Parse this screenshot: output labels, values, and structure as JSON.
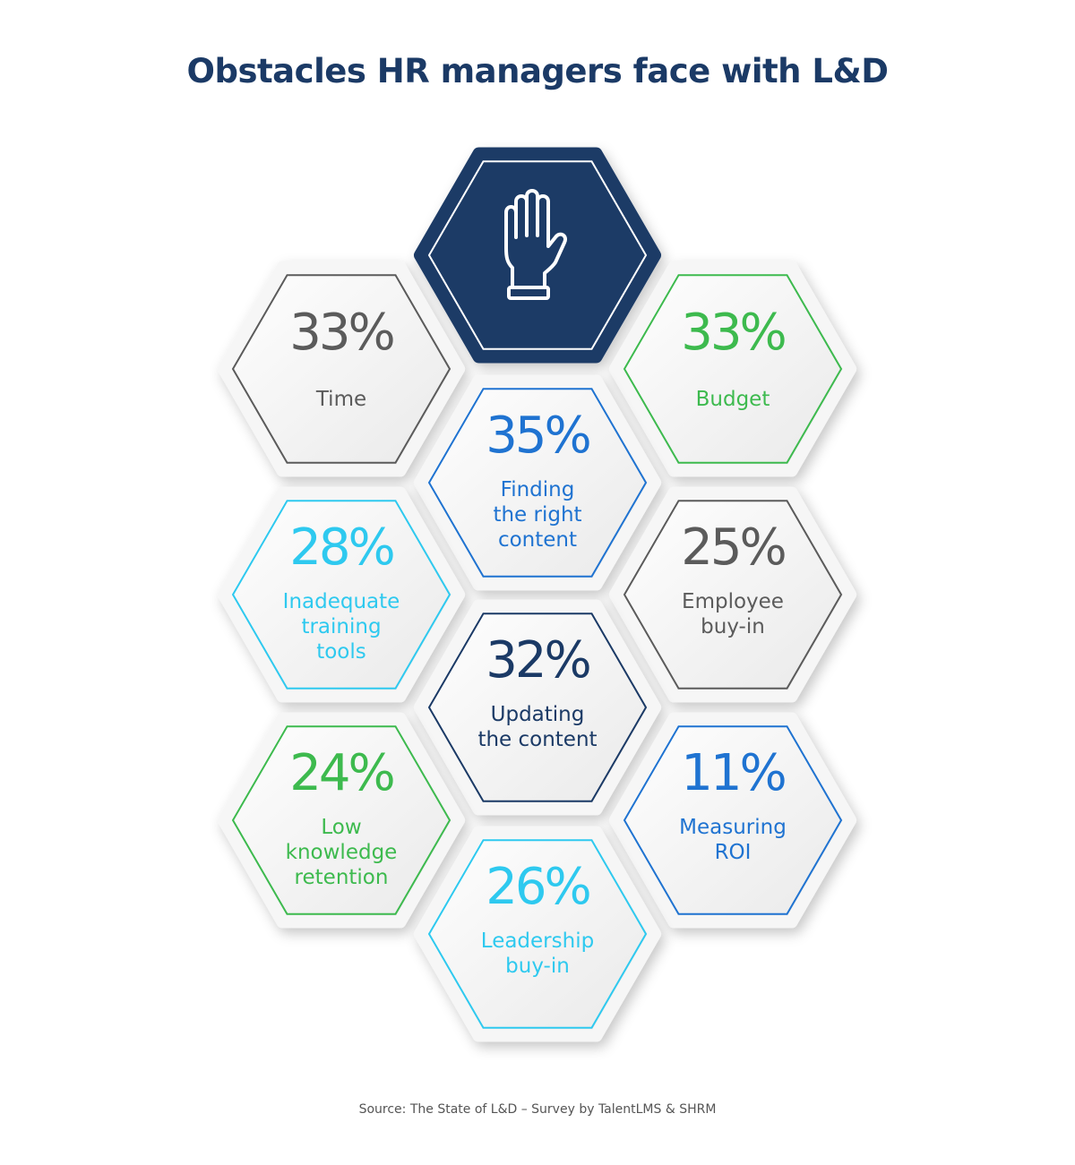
{
  "title": "Obstacles HR managers face with L&D",
  "source": "Source: The State of L&D – Survey by TalentLMS & SHRM",
  "center_icon": "raised-hand-icon",
  "colors": {
    "navy": "#1b3a66",
    "gray": "#5b5b5b",
    "green": "#3dba4e",
    "blue": "#1f73d1",
    "cyan": "#2ec9ef"
  },
  "items": [
    {
      "value": "33%",
      "label": "Time",
      "color": "#5b5b5b"
    },
    {
      "value": "33%",
      "label": "Budget",
      "color": "#3dba4e"
    },
    {
      "value": "35%",
      "label": "Finding\nthe right\ncontent",
      "color": "#1f73d1"
    },
    {
      "value": "28%",
      "label": "Inadequate\ntraining\ntools",
      "color": "#2ec9ef"
    },
    {
      "value": "25%",
      "label": "Employee\nbuy-in",
      "color": "#5b5b5b"
    },
    {
      "value": "32%",
      "label": "Updating\nthe content",
      "color": "#1b3a66"
    },
    {
      "value": "24%",
      "label": "Low\nknowledge\nretention",
      "color": "#3dba4e"
    },
    {
      "value": "11%",
      "label": "Measuring\nROI",
      "color": "#1f73d1"
    },
    {
      "value": "26%",
      "label": "Leadership\nbuy-in",
      "color": "#2ec9ef"
    }
  ]
}
